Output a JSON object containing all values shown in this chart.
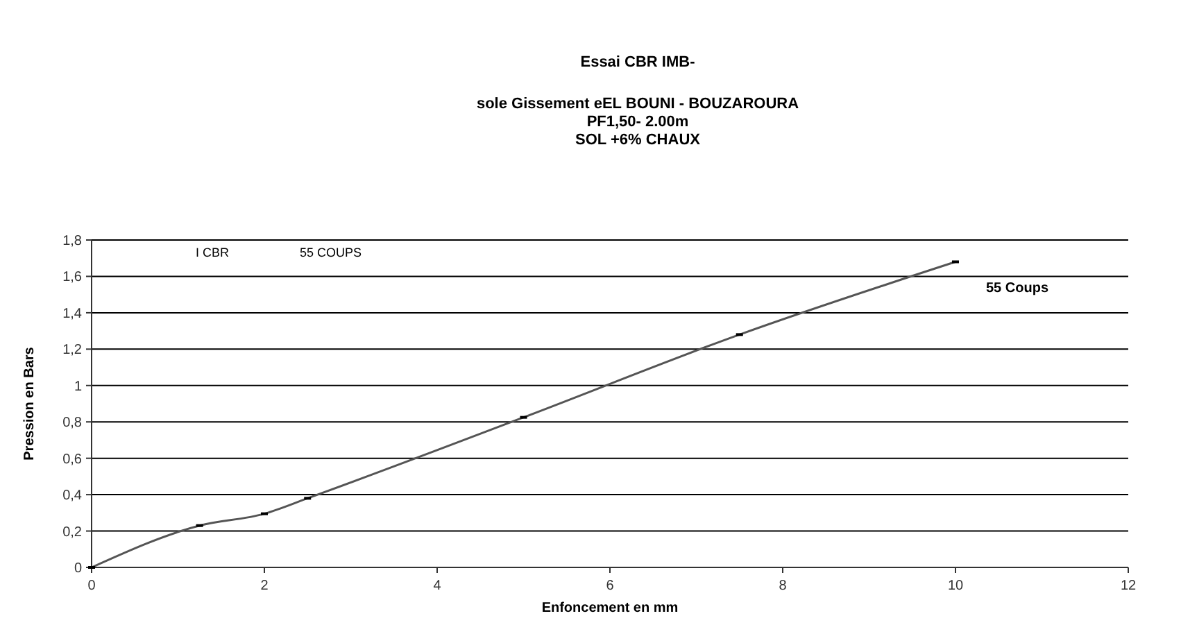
{
  "chart_data": {
    "type": "line",
    "title": "Essai  CBR IMB-",
    "subtitle": "sole Gissement eEL BOUNI - BOUZAROURA\nPF1,50- 2.00m\nSOL +6% CHAUX",
    "xlabel": "Enfoncement en mm",
    "ylabel": "Pression en Bars",
    "x": [
      0,
      1.25,
      2,
      2.5,
      5,
      7.5,
      10
    ],
    "series": [
      {
        "color": "#555555",
        "values": [
          0,
          0.23,
          0.295,
          0.38,
          0.825,
          1.28,
          1.68
        ]
      }
    ],
    "xlim": [
      0,
      12
    ],
    "xticks": [
      0,
      2,
      4,
      6,
      8,
      10,
      12
    ],
    "ylim": [
      0,
      1.8
    ],
    "yticks": [
      0,
      {
        "value": 0.2,
        "label": "0,2"
      },
      {
        "value": 0.4,
        "label": "0,4"
      },
      {
        "value": 0.6,
        "label": "0,6"
      },
      {
        "value": 0.8,
        "label": "0,8"
      },
      1,
      {
        "value": 1.2,
        "label": "1,2"
      },
      {
        "value": 1.4,
        "label": "1,4"
      },
      {
        "value": 1.6,
        "label": "1,6"
      },
      {
        "value": 1.8,
        "label": "1,8"
      }
    ],
    "grid": "y",
    "marker": "square",
    "line_style": "solid",
    "annotations": [
      "I  CBR",
      "55 COUPS",
      {
        "text": "55 Coups",
        "x": 10,
        "y": 1.68
      }
    ]
  }
}
